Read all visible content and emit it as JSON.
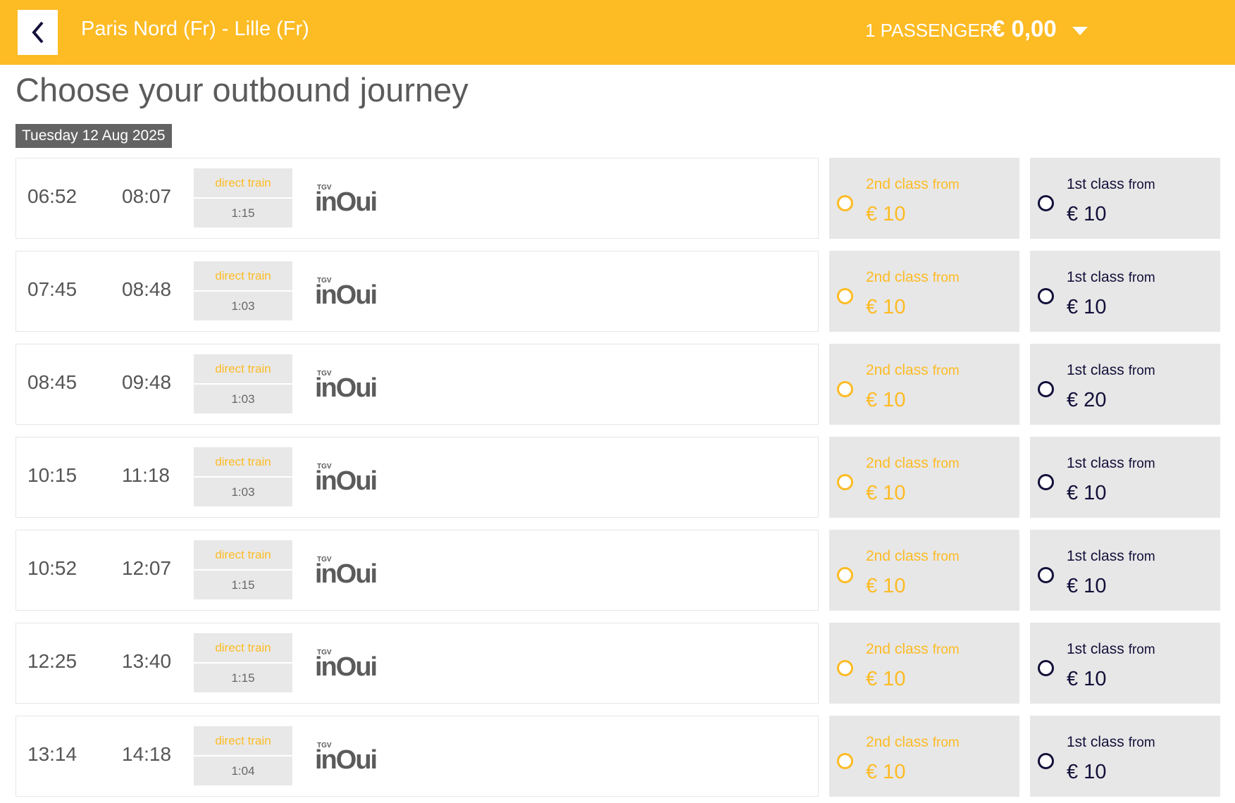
{
  "header": {
    "route": "Paris Nord (Fr) - Lille (Fr)",
    "passengers": "1 PASSENGER",
    "total": "€ 0,00"
  },
  "page": {
    "title": "Choose your outbound journey",
    "date": "Tuesday 12 Aug 2025"
  },
  "colors": {
    "brand": "#fdbb24",
    "dark": "#13103a"
  },
  "labels": {
    "direct": "direct train",
    "second": "2nd class",
    "first": "1st class",
    "from": "from",
    "tgv": "TGV",
    "brand": "inOui"
  },
  "journeys": [
    {
      "dep": "06:52",
      "arr": "08:07",
      "duration": "1:15",
      "second_price": "€ 10",
      "first_price": "€ 10"
    },
    {
      "dep": "07:45",
      "arr": "08:48",
      "duration": "1:03",
      "second_price": "€ 10",
      "first_price": "€ 10"
    },
    {
      "dep": "08:45",
      "arr": "09:48",
      "duration": "1:03",
      "second_price": "€ 10",
      "first_price": "€ 20"
    },
    {
      "dep": "10:15",
      "arr": "11:18",
      "duration": "1:03",
      "second_price": "€ 10",
      "first_price": "€ 10"
    },
    {
      "dep": "10:52",
      "arr": "12:07",
      "duration": "1:15",
      "second_price": "€ 10",
      "first_price": "€ 10"
    },
    {
      "dep": "12:25",
      "arr": "13:40",
      "duration": "1:15",
      "second_price": "€ 10",
      "first_price": "€ 10"
    },
    {
      "dep": "13:14",
      "arr": "14:18",
      "duration": "1:04",
      "second_price": "€ 10",
      "first_price": "€ 10"
    }
  ]
}
